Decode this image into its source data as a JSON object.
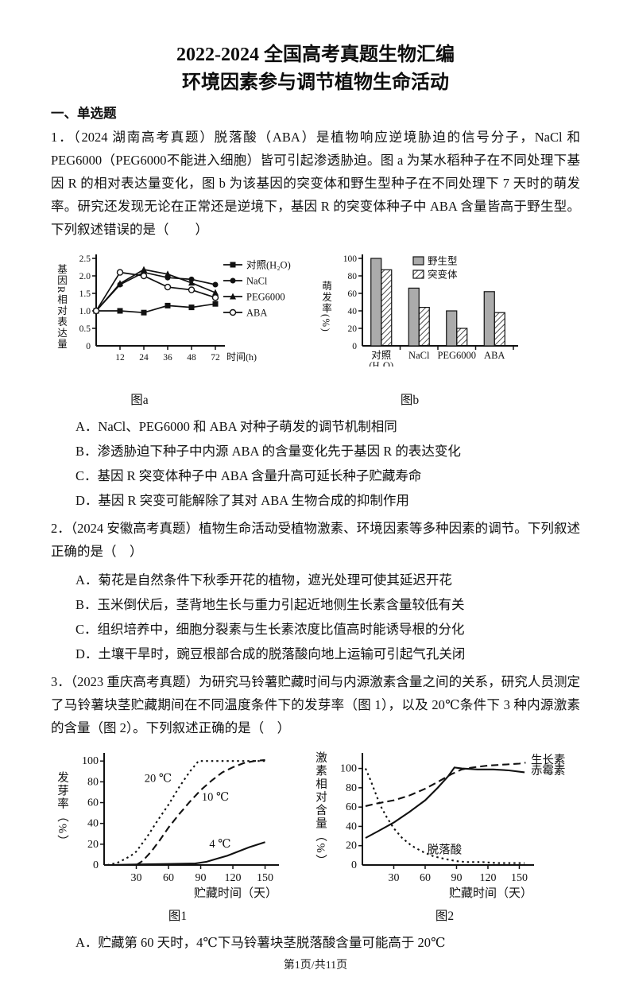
{
  "page": {
    "title_line1": "2022-2024 全国高考真题生物汇编",
    "title_line2": "环境因素参与调节植物生命活动",
    "section_heading": "一、单选题",
    "footer": "第1页/共11页"
  },
  "q1": {
    "stem": "1．（2024 湖南高考真题）脱落酸（ABA）是植物响应逆境胁迫的信号分子，NaCl 和 PEG6000（PEG6000不能进入细胞）皆可引起渗透胁迫。图 a 为某水稻种子在不同处理下基因 R 的相对表达量变化，图 b 为该基因的突变体和野生型种子在不同处理下 7 天时的萌发率。研究还发现无论在正常还是逆境下，基因 R 的突变体种子中 ABA 含量皆高于野生型。下列叙述错误的是（　　）",
    "options": [
      "A．NaCl、PEG6000 和 ABA 对种子萌发的调节机制相同",
      "B．渗透胁迫下种子中内源 ABA 的含量变化先于基因 R 的表达变化",
      "C．基因 R 突变体种子中 ABA 含量升高可延长种子贮藏寿命",
      "D．基因 R 突变可能解除了其对 ABA 生物合成的抑制作用"
    ]
  },
  "q2": {
    "stem": "2．（2024 安徽高考真题）植物生命活动受植物激素、环境因素等多种因素的调节。下列叙述正确的是（　）",
    "options": [
      "A．菊花是自然条件下秋季开花的植物，遮光处理可使其延迟开花",
      "B．玉米倒伏后，茎背地生长与重力引起近地侧生长素含量较低有关",
      "C．组织培养中，细胞分裂素与生长素浓度比值高时能诱导根的分化",
      "D．土壤干旱时，豌豆根部合成的脱落酸向地上运输可引起气孔关闭"
    ]
  },
  "q3": {
    "stem": "3．（2023 重庆高考真题）为研究马铃薯贮藏时间与内源激素含量之间的关系，研究人员测定了马铃薯块茎贮藏期间在不同温度条件下的发芽率（图 1），以及 20℃条件下 3 种内源激素的含量（图 2）。下列叙述正确的是（　）",
    "options": [
      "A．贮藏第 60 天时，4℃下马铃薯块茎脱落酸含量可能高于 20℃"
    ]
  },
  "chart_data": [
    {
      "type": "line",
      "title": "图a",
      "ylabel": "基因R相对表达量",
      "xlabel": "时间(h)",
      "ylim": [
        0,
        2.5
      ],
      "yticks": [
        0,
        0.5,
        1.0,
        1.5,
        2.0,
        2.5
      ],
      "ytick_labels": [
        "0",
        "0.5",
        "1.0",
        "1.5",
        "2.0",
        "2.5"
      ],
      "x_hours": [
        0,
        12,
        24,
        36,
        48,
        72
      ],
      "xticklabels": [
        "12",
        "24",
        "36",
        "48",
        "72"
      ],
      "legend_position": "right",
      "series": [
        {
          "name": "对照(H₂O)",
          "marker": "square-filled",
          "values": [
            1.0,
            1.0,
            0.95,
            1.15,
            1.1,
            1.2
          ]
        },
        {
          "name": "NaCl",
          "marker": "circle-filled",
          "values": [
            1.0,
            1.75,
            2.1,
            1.95,
            1.9,
            1.75
          ]
        },
        {
          "name": "PEG6000",
          "marker": "triangle-filled",
          "values": [
            1.0,
            1.78,
            2.18,
            2.05,
            1.8,
            1.52
          ]
        },
        {
          "name": "ABA",
          "marker": "circle-open",
          "values": [
            1.0,
            2.1,
            2.0,
            1.68,
            1.6,
            1.38
          ]
        }
      ]
    },
    {
      "type": "bar",
      "title": "图b",
      "ylabel": "萌发率(%)",
      "ylim": [
        0,
        100
      ],
      "yticks": [
        0,
        20,
        40,
        60,
        80,
        100
      ],
      "ytick_labels": [
        "0",
        "20",
        "40",
        "60",
        "80",
        "100"
      ],
      "categories": [
        "对照\n(H₂O)",
        "NaCl",
        "PEG6000",
        "ABA"
      ],
      "legend_position": "top",
      "series": [
        {
          "name": "野生型",
          "style": "gray",
          "values": [
            100,
            66,
            40,
            62
          ]
        },
        {
          "name": "突变体",
          "style": "hatched",
          "values": [
            87,
            44,
            20,
            38
          ]
        }
      ]
    },
    {
      "type": "line",
      "title": "图1",
      "ylabel": "发芽率（%）",
      "xlabel": "贮藏时间（天）",
      "ylim": [
        0,
        104
      ],
      "yticks": [
        0,
        20,
        40,
        60,
        80,
        100
      ],
      "ytick_labels": [
        "0",
        "20",
        "40",
        "60",
        "80",
        "100"
      ],
      "xticks": [
        30,
        60,
        90,
        120,
        150
      ],
      "xlim": [
        0,
        157
      ],
      "series": [
        {
          "name": "20 ℃",
          "dash": "dotted",
          "x": [
            3,
            12,
            20,
            28,
            30,
            40,
            50,
            60,
            70,
            80,
            88,
            100,
            120,
            150
          ],
          "y": [
            0,
            2,
            6,
            11,
            13,
            27,
            43,
            58,
            75,
            90,
            100,
            100,
            100,
            100
          ]
        },
        {
          "name": "10 ℃",
          "dash": "dashed",
          "x": [
            30,
            36,
            44,
            52,
            60,
            70,
            80,
            90,
            100,
            110,
            120,
            130,
            140,
            150
          ],
          "y": [
            0,
            4,
            13,
            24,
            36,
            49,
            61,
            72,
            81,
            89,
            94,
            98,
            100,
            101
          ]
        },
        {
          "name": "4 ℃",
          "dash": "solid",
          "x": [
            3,
            30,
            60,
            85,
            95,
            105,
            115,
            125,
            135,
            150
          ],
          "y": [
            0,
            0.5,
            1,
            1.5,
            3,
            6,
            9,
            13,
            17,
            22
          ]
        }
      ],
      "annotations": [
        {
          "text": "20 ℃",
          "x": 63,
          "y": 80,
          "anchor": "end"
        },
        {
          "text": "10 ℃",
          "x": 91,
          "y": 62,
          "anchor": "start"
        },
        {
          "text": "4 ℃",
          "x": 98,
          "y": 17,
          "anchor": "start"
        }
      ]
    },
    {
      "type": "line",
      "title": "图2",
      "ylabel": "激素相对含量（%）",
      "xlabel": "贮藏时间（天）",
      "ylim": [
        0,
        112
      ],
      "yticks": [
        0,
        20,
        40,
        60,
        80,
        100
      ],
      "ytick_labels": [
        "0",
        "20",
        "40",
        "60",
        "80",
        "100"
      ],
      "xticks": [
        30,
        60,
        90,
        120,
        150
      ],
      "xlim": [
        0,
        158
      ],
      "series": [
        {
          "name": "生长素",
          "dash": "dashed",
          "x": [
            3,
            15,
            30,
            45,
            60,
            72,
            85,
            95,
            105,
            120,
            135,
            150,
            156
          ],
          "y": [
            61,
            64,
            67,
            72,
            79,
            86,
            94,
            99,
            101,
            103,
            104,
            105,
            106
          ]
        },
        {
          "name": "赤霉素",
          "dash": "solid",
          "x": [
            3,
            15,
            30,
            45,
            60,
            72,
            82,
            88,
            95,
            110,
            125,
            140,
            155
          ],
          "y": [
            28,
            35,
            44,
            55,
            67,
            80,
            92,
            101,
            100,
            99,
            99,
            98,
            96
          ]
        },
        {
          "name": "脱落酸",
          "dash": "dotted",
          "x": [
            3,
            7,
            12,
            17,
            23,
            30,
            38,
            47,
            57,
            68,
            80,
            90,
            100,
            115,
            130,
            145,
            155
          ],
          "y": [
            100,
            90,
            76,
            62,
            50,
            38,
            28,
            20,
            14,
            9,
            6,
            4,
            3,
            3,
            2,
            2,
            2
          ]
        }
      ],
      "annotations": [
        {
          "text": "生长素",
          "x": 161,
          "y": 105,
          "anchor": "start"
        },
        {
          "text": "赤霉素",
          "x": 161,
          "y": 94,
          "anchor": "start"
        },
        {
          "text": "脱落酸",
          "x": 62,
          "y": 12,
          "anchor": "start"
        }
      ]
    }
  ]
}
